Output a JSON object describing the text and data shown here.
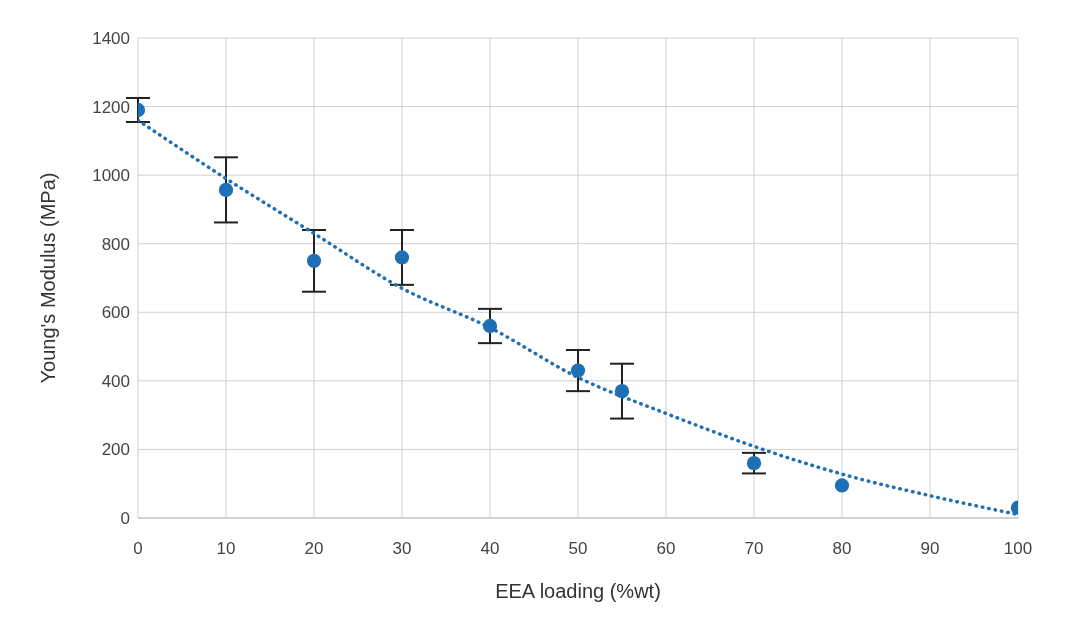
{
  "chart_data": {
    "type": "scatter",
    "xlabel": "EEA loading (%wt)",
    "ylabel": "Young's Modulus (MPa)",
    "xlim": [
      0,
      100
    ],
    "xticks": [
      0,
      10,
      20,
      30,
      40,
      50,
      60,
      70,
      80,
      90,
      100
    ],
    "ylim": [
      0,
      1400
    ],
    "yticks": [
      0,
      200,
      400,
      600,
      800,
      1000,
      1200,
      1400
    ],
    "grid": true,
    "legend": false,
    "series": [
      {
        "color": "#1f6fb4",
        "marker": "circle",
        "x": [
          0,
          10,
          20,
          30,
          40,
          50,
          55,
          70,
          80,
          100
        ],
        "values": [
          1190,
          957,
          750,
          760,
          560,
          430,
          370,
          160,
          95,
          30
        ],
        "errors": [
          35,
          95,
          90,
          80,
          50,
          60,
          80,
          30,
          null,
          null
        ]
      },
      {
        "type": "line",
        "color": "#1f6fb4",
        "marker": "none",
        "line_style": "dotted",
        "x": [
          0,
          10,
          20,
          30,
          40,
          50,
          60,
          70,
          80,
          90,
          100
        ],
        "values": [
          1160,
          990,
          830,
          670,
          555,
          410,
          305,
          209,
          128,
          65,
          10
        ]
      }
    ]
  }
}
